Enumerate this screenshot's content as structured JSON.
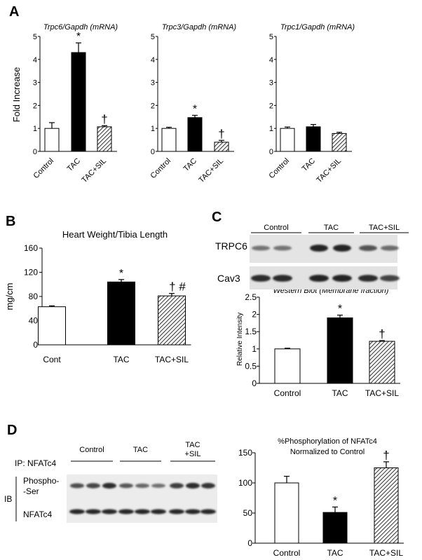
{
  "panels": {
    "A": "A",
    "B": "B",
    "C": "C",
    "D": "D"
  },
  "colors": {
    "control_fill": "#ffffff",
    "tac_fill": "#000000",
    "sil_fill": "hatched"
  },
  "chart_data": [
    {
      "id": "A1",
      "type": "bar",
      "title": "Trpc6/Gapdh  (mRNA)",
      "ylabel": "Fold Increase",
      "categories": [
        "Control",
        "TAC",
        "TAC+SIL"
      ],
      "values": [
        1.0,
        4.3,
        1.07
      ],
      "errors": [
        0.25,
        0.42,
        0.05
      ],
      "annotations": [
        "",
        "*",
        "†"
      ],
      "ylim": [
        0,
        5
      ],
      "yticks": [
        "0",
        "1",
        "2",
        "3",
        "4",
        "5"
      ]
    },
    {
      "id": "A2",
      "type": "bar",
      "title": "Trpc3/Gapdh  (mRNA)",
      "ylabel": "",
      "categories": [
        "Control",
        "TAC",
        "TAC+SIL"
      ],
      "values": [
        1.0,
        1.47,
        0.4
      ],
      "errors": [
        0.05,
        0.1,
        0.08
      ],
      "annotations": [
        "",
        "*",
        "†"
      ],
      "ylim": [
        0,
        5
      ],
      "yticks": [
        "0",
        "1",
        "2",
        "3",
        "4",
        "5"
      ]
    },
    {
      "id": "A3",
      "type": "bar",
      "title": "Trpc1/Gapdh  (mRNA)",
      "ylabel": "",
      "categories": [
        "Control",
        "TAC",
        "TAC+SIL"
      ],
      "values": [
        1.0,
        1.07,
        0.78
      ],
      "errors": [
        0.06,
        0.1,
        0.05
      ],
      "annotations": [
        "",
        "",
        ""
      ],
      "ylim": [
        0,
        5
      ],
      "yticks": [
        "0",
        "1",
        "2",
        "3",
        "4",
        "5"
      ]
    },
    {
      "id": "B",
      "type": "bar",
      "title": "Heart Weight/Tibia Length",
      "ylabel": "mg/cm",
      "categories": [
        "Cont",
        "TAC",
        "TAC+SIL"
      ],
      "values": [
        63,
        104,
        81
      ],
      "errors": [
        1.5,
        4,
        4
      ],
      "annotations": [
        "",
        "*",
        "†  #"
      ],
      "ylim": [
        0,
        160
      ],
      "yticks": [
        "0",
        "40",
        "80",
        "120",
        "160"
      ]
    },
    {
      "id": "C",
      "type": "bar",
      "title": "Western Blot (Membrane fraction)",
      "ylabel": "Relative Intensity",
      "categories": [
        "Control",
        "TAC",
        "TAC+SIL"
      ],
      "values": [
        1.0,
        1.9,
        1.22
      ],
      "errors": [
        0.02,
        0.08,
        0.02
      ],
      "annotations": [
        "",
        "*",
        "†"
      ],
      "ylim": [
        0,
        2.5
      ],
      "yticks": [
        "0",
        "0.5",
        "1",
        "1.5",
        "2",
        "2.5"
      ]
    },
    {
      "id": "D",
      "type": "bar",
      "title": "%Phosphorylation of NFATc4",
      "subtitle": "Normalized to Control",
      "ylabel": "",
      "categories": [
        "Control",
        "TAC",
        "TAC+SIL"
      ],
      "values": [
        100,
        51,
        125
      ],
      "errors": [
        11,
        9,
        10
      ],
      "annotations": [
        "",
        "*",
        "†"
      ],
      "ylim": [
        0,
        150
      ],
      "yticks": [
        "0",
        "50",
        "100",
        "150"
      ]
    }
  ],
  "blots": {
    "C": {
      "groups": [
        "Control",
        "TAC",
        "TAC+SIL"
      ],
      "rows": [
        "TRPC6",
        "Cav3"
      ],
      "lanes": [
        {
          "group": 0,
          "TRPC6": 0.35,
          "Cav3": 0.8
        },
        {
          "group": 0,
          "TRPC6": 0.35,
          "Cav3": 0.8
        },
        {
          "group": 1,
          "TRPC6": 0.85,
          "Cav3": 0.85
        },
        {
          "group": 1,
          "TRPC6": 0.85,
          "Cav3": 0.85
        },
        {
          "group": 2,
          "TRPC6": 0.55,
          "Cav3": 0.8
        },
        {
          "group": 2,
          "TRPC6": 0.4,
          "Cav3": 0.65
        }
      ]
    },
    "D": {
      "ip_label": "IP: NFATc4",
      "ib_label": "IB",
      "groups": [
        "Control",
        "TAC",
        "TAC\n+SIL"
      ],
      "group_line1": [
        "Control",
        "TAC",
        "TAC"
      ],
      "group_line2": [
        "",
        "",
        "+SIL"
      ],
      "rows": [
        "Phospho-\n-Ser",
        "NFATc4"
      ],
      "row1_line1": "Phospho-",
      "row1_line2": "-Ser",
      "row2": "NFATc4",
      "lanes": [
        {
          "group": 0,
          "p": 0.6,
          "t": 0.85
        },
        {
          "group": 0,
          "p": 0.65,
          "t": 0.85
        },
        {
          "group": 0,
          "p": 0.8,
          "t": 0.85
        },
        {
          "group": 1,
          "p": 0.55,
          "t": 0.85
        },
        {
          "group": 1,
          "p": 0.45,
          "t": 0.85
        },
        {
          "group": 1,
          "p": 0.4,
          "t": 0.85
        },
        {
          "group": 2,
          "p": 0.7,
          "t": 0.85
        },
        {
          "group": 2,
          "p": 0.8,
          "t": 0.85
        },
        {
          "group": 2,
          "p": 0.75,
          "t": 0.85
        }
      ]
    }
  }
}
